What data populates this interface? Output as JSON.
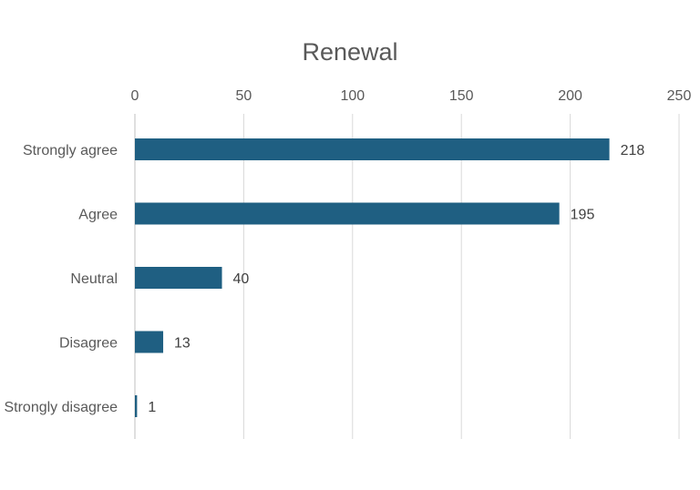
{
  "chart_data": {
    "type": "bar",
    "orientation": "horizontal",
    "title": "Renewal",
    "categories": [
      "Strongly agree",
      "Agree",
      "Neutral",
      "Disagree",
      "Strongly disagree"
    ],
    "values": [
      218,
      195,
      40,
      13,
      1
    ],
    "xlim": [
      0,
      250
    ],
    "xticks": [
      0,
      50,
      100,
      150,
      200,
      250
    ],
    "xaxis_position": "top",
    "grid": true,
    "legend": "none",
    "data_labels": true,
    "bar_color": "#1f5f82",
    "gridline_color": "#d9d9d9"
  }
}
